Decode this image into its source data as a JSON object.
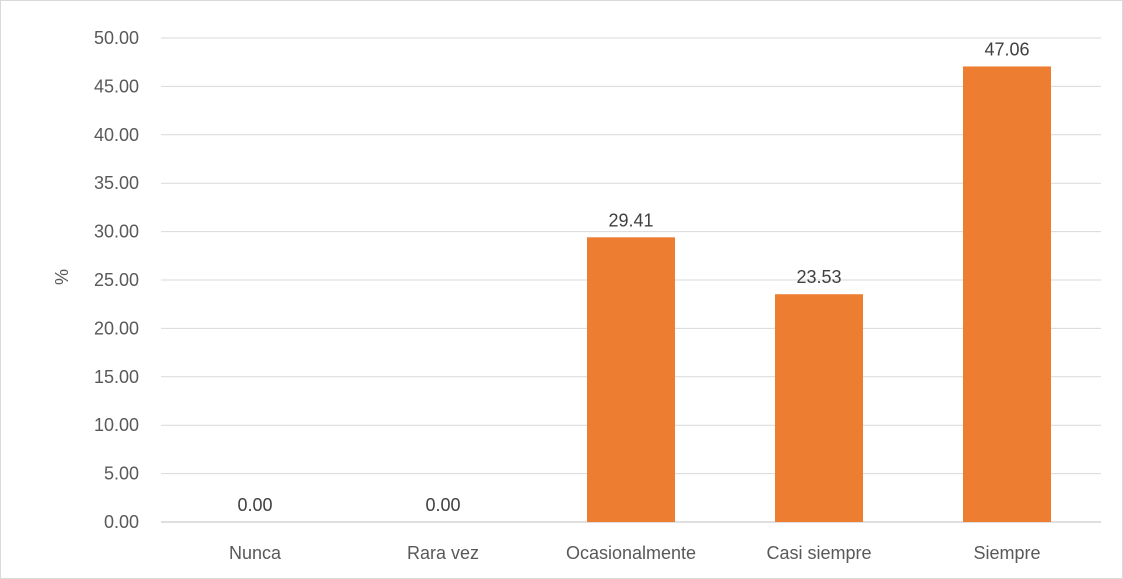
{
  "chart_data": {
    "type": "bar",
    "categories": [
      "Nunca",
      "Rara vez",
      "Ocasionalmente",
      "Casi siempre",
      "Siempre"
    ],
    "values": [
      0.0,
      0.0,
      29.41,
      23.53,
      47.06
    ],
    "data_labels": [
      "0.00",
      "0.00",
      "29.41",
      "23.53",
      "47.06"
    ],
    "title": "",
    "xlabel": "",
    "ylabel": "%",
    "ylim": [
      0,
      50
    ],
    "yticks": [
      0,
      5,
      10,
      15,
      20,
      25,
      30,
      35,
      40,
      45,
      50
    ],
    "ytick_labels": [
      "0.00",
      "5.00",
      "10.00",
      "15.00",
      "20.00",
      "25.00",
      "30.00",
      "35.00",
      "40.00",
      "45.00",
      "50.00"
    ],
    "grid": true,
    "legend": "none",
    "bar_color": "#ED7D31"
  }
}
